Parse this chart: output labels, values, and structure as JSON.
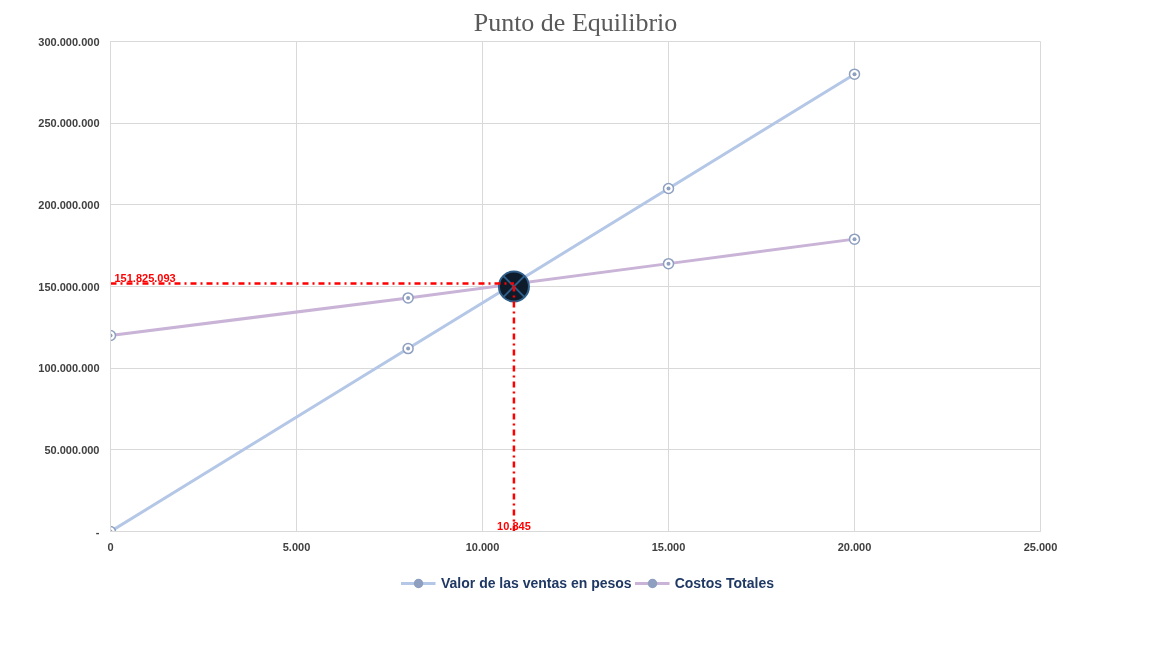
{
  "chart_data": {
    "type": "line",
    "title": "Punto de Equilibrio",
    "series": [
      {
        "name": "Valor de las ventas en pesos",
        "color": "#b4c7e7",
        "x": [
          0,
          8000,
          15000,
          20000
        ],
        "values": [
          0,
          112000000,
          210000000,
          280000000
        ]
      },
      {
        "name": "Costos Totales",
        "color": "#c9b3d6",
        "x": [
          0,
          8000,
          15000,
          20000
        ],
        "values": [
          120000000,
          143000000,
          164000000,
          179000000
        ]
      },
      {
        "type": "scatter",
        "color": "#0d1b2a",
        "marker": "circle_x",
        "x": [
          10845
        ],
        "values": [
          150000000
        ]
      }
    ],
    "xlim": [
      0,
      25000
    ],
    "xticks": [
      {
        "value": 0,
        "label": "0"
      },
      {
        "value": 5000,
        "label": "5.000"
      },
      {
        "value": 10000,
        "label": "10.000"
      },
      {
        "value": 15000,
        "label": "15.000"
      },
      {
        "value": 20000,
        "label": "20.000"
      },
      {
        "value": 25000,
        "label": "25.000"
      }
    ],
    "ylim": [
      0,
      300000000
    ],
    "yticks": [
      {
        "value": 0,
        "label": "-"
      },
      {
        "value": 50000000,
        "label": "50.000.000"
      },
      {
        "value": 100000000,
        "label": "100.000.000"
      },
      {
        "value": 150000000,
        "label": "150.000.000"
      },
      {
        "value": 200000000,
        "label": "200.000.000"
      },
      {
        "value": 250000000,
        "label": "250.000.000"
      },
      {
        "value": 300000000,
        "label": "300.000.000"
      }
    ],
    "ref_lines": [
      {
        "axis": "y",
        "value": 151825093,
        "label": "151.825.093",
        "color": "#ff0000",
        "line_style": "dashdot"
      },
      {
        "axis": "x",
        "value": 10845,
        "label": "10.845",
        "color": "#ff0000",
        "line_style": "dashdot"
      }
    ],
    "grid": true,
    "legend": "bottom",
    "marker": "circle"
  }
}
